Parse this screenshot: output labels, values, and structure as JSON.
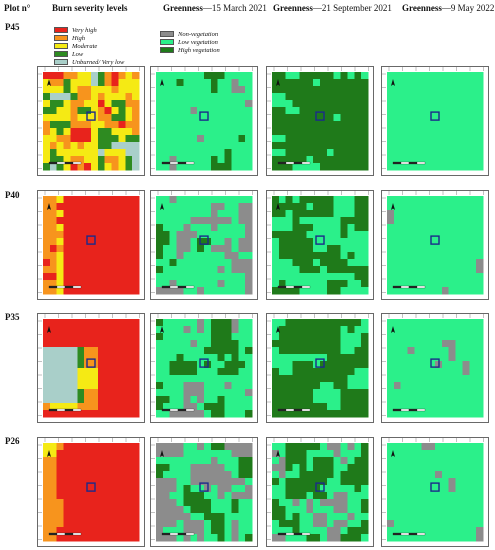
{
  "headers": {
    "plot": "Plot n°",
    "burn": "Burn severity levels",
    "g1_prefix": "Greenness",
    "g1_date": "—15 March 2021",
    "g2_prefix": "Greenness",
    "g2_date": "—21 September 2021",
    "g3_prefix": "Greenness",
    "g3_date": "—9 May 2022"
  },
  "plots": [
    {
      "label": "P45"
    },
    {
      "label": "P40"
    },
    {
      "label": "P35"
    },
    {
      "label": "P26"
    }
  ],
  "legend_burn": [
    {
      "label": "Very high",
      "color": "#e8231c"
    },
    {
      "label": "High",
      "color": "#f7941d"
    },
    {
      "label": "Moderate",
      "color": "#f5ea14"
    },
    {
      "label": "Low",
      "color": "#2e8b21"
    },
    {
      "label": "Unburned/ Very low",
      "color": "#a9cfc9"
    }
  ],
  "legend_green": [
    {
      "label": "Non-vegetation",
      "color": "#8c8c8c"
    },
    {
      "label": "Low vegetation",
      "color": "#2bf08a"
    },
    {
      "label": "High vegetation",
      "color": "#1f7a1a"
    }
  ]
}
